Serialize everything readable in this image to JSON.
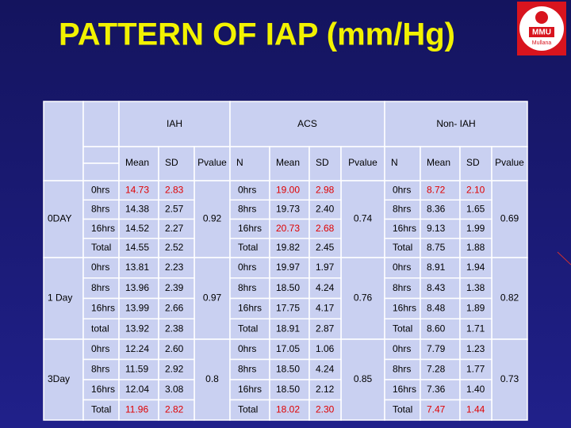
{
  "title": "PATTERN OF IAP (mm/Hg)",
  "logo": {
    "name": "MMU",
    "place": "Mullana"
  },
  "table": {
    "groups_header": [
      "IAH",
      "ACS",
      "Non- IAH"
    ],
    "columns": [
      "Mean",
      "SD",
      "Pvalue",
      "N",
      "Mean",
      "SD",
      "Pvalue",
      "N",
      "Mean",
      "SD",
      "Pvalue"
    ],
    "highlight_color": "#e00000",
    "text_color": "#000000",
    "days": [
      {
        "label": "0DAY",
        "pvalues": [
          "0.92",
          "0.74",
          "0.69"
        ],
        "rows": [
          {
            "iah": [
              "0hrs",
              "14.73",
              "2.83"
            ],
            "acs": [
              "0hrs",
              "19.00",
              "2.98"
            ],
            "non": [
              "0hrs",
              "8.72",
              "2.10"
            ],
            "highlight": [
              true,
              true,
              true
            ]
          },
          {
            "iah": [
              "8hrs",
              "14.38",
              "2.57"
            ],
            "acs": [
              "8hrs",
              "19.73",
              "2.40"
            ],
            "non": [
              "8hrs",
              "8.36",
              "1.65"
            ],
            "highlight": [
              false,
              false,
              false
            ]
          },
          {
            "iah": [
              "16hrs",
              "14.52",
              "2.27"
            ],
            "acs": [
              "16hrs",
              "20.73",
              "2.68"
            ],
            "non": [
              "16hrs",
              "9.13",
              "1.99"
            ],
            "highlight": [
              false,
              true,
              false
            ]
          },
          {
            "iah": [
              "Total",
              "14.55",
              "2.52"
            ],
            "acs": [
              "Total",
              "19.82",
              "2.45"
            ],
            "non": [
              "Total",
              "8.75",
              "1.88"
            ],
            "highlight": [
              false,
              false,
              false
            ]
          }
        ]
      },
      {
        "label": "1 Day",
        "pvalues": [
          "0.97",
          "0.76",
          "0.82"
        ],
        "rows": [
          {
            "iah": [
              "0hrs",
              "13.81",
              "2.23"
            ],
            "acs": [
              "0hrs",
              "19.97",
              "1.97"
            ],
            "non": [
              "0hrs",
              "8.91",
              "1.94"
            ],
            "highlight": [
              false,
              false,
              false
            ]
          },
          {
            "iah": [
              "8hrs",
              "13.96",
              "2.39"
            ],
            "acs": [
              "8hrs",
              "18.50",
              "4.24"
            ],
            "non": [
              "8hrs",
              "8.43",
              "1.38"
            ],
            "highlight": [
              false,
              false,
              false
            ]
          },
          {
            "iah": [
              "16hrs",
              "13.99",
              "2.66"
            ],
            "acs": [
              "16hrs",
              "17.75",
              "4.17"
            ],
            "non": [
              "16hrs",
              "8.48",
              "1.89"
            ],
            "highlight": [
              false,
              false,
              false
            ]
          },
          {
            "iah": [
              "total",
              "13.92",
              "2.38"
            ],
            "acs": [
              "Total",
              "18.91",
              "2.87"
            ],
            "non": [
              "Total",
              "8.60",
              "1.71"
            ],
            "highlight": [
              false,
              false,
              false
            ]
          }
        ]
      },
      {
        "label": "3Day",
        "pvalues": [
          "0.8",
          "0.85",
          "0.73"
        ],
        "rows": [
          {
            "iah": [
              "0hrs",
              "12.24",
              "2.60"
            ],
            "acs": [
              "0hrs",
              "17.05",
              "1.06"
            ],
            "non": [
              "0hrs",
              "7.79",
              "1.23"
            ],
            "highlight": [
              false,
              false,
              false
            ]
          },
          {
            "iah": [
              "8hrs",
              "11.59",
              "2.92"
            ],
            "acs": [
              "8hrs",
              "18.50",
              "4.24"
            ],
            "non": [
              "8hrs",
              "7.28",
              "1.77"
            ],
            "highlight": [
              false,
              false,
              false
            ]
          },
          {
            "iah": [
              "16hrs",
              "12.04",
              "3.08"
            ],
            "acs": [
              "16hrs",
              "18.50",
              "2.12"
            ],
            "non": [
              "16hrs",
              "7.36",
              "1.40"
            ],
            "highlight": [
              false,
              false,
              false
            ]
          },
          {
            "iah": [
              "Total",
              "11.96",
              "2.82"
            ],
            "acs": [
              "Total",
              "18.02",
              "2.30"
            ],
            "non": [
              "Total",
              "7.47",
              "1.44"
            ],
            "highlight": [
              true,
              true,
              true
            ]
          }
        ]
      }
    ]
  }
}
